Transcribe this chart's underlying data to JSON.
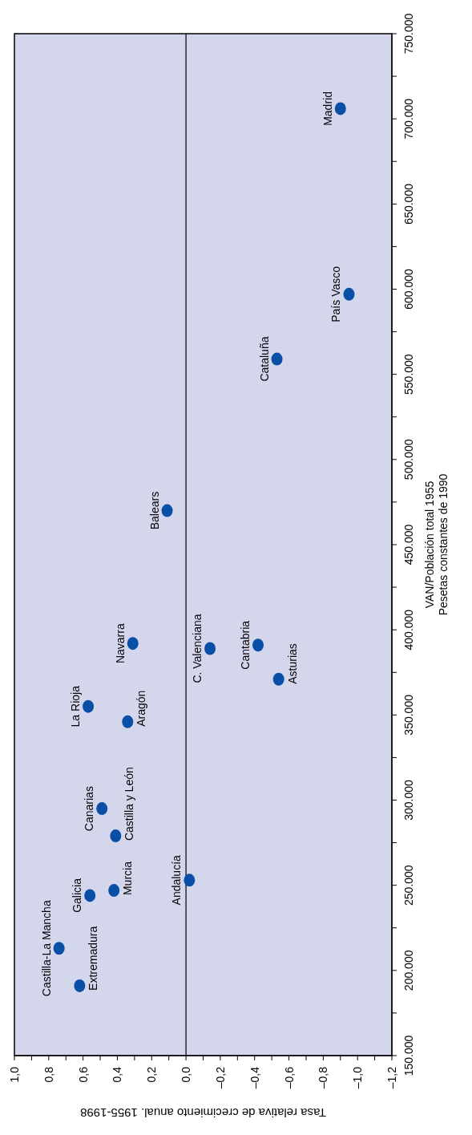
{
  "chart_data": {
    "type": "scatter",
    "xlabel": "Tasa relativa de crecimiento anual. 1955-1998",
    "ylabel": "VAN/Población total 1955\nPesetas constantes de 1990",
    "x": [
      -0.9,
      -0.95,
      -0.53,
      0.11,
      0.31,
      0.57,
      0.34,
      -0.14,
      -0.42,
      -0.54,
      0.49,
      0.41,
      0.56,
      0.42,
      -0.02,
      0.74,
      0.62
    ],
    "values": [
      706000,
      597000,
      559000,
      470000,
      392000,
      355000,
      346000,
      389000,
      391000,
      371000,
      295000,
      279000,
      244000,
      247000,
      253000,
      213000,
      191000
    ],
    "color": "#0a4fa6",
    "marker": "circle",
    "ylim": [
      150000,
      750000
    ],
    "yticks": [
      {
        "value": 150000,
        "label": "150.000"
      },
      {
        "value": 175000,
        "label": null
      },
      {
        "value": 200000,
        "label": "200.000"
      },
      {
        "value": 225000,
        "label": null
      },
      {
        "value": 250000,
        "label": "250.000"
      },
      {
        "value": 275000,
        "label": null
      },
      {
        "value": 300000,
        "label": "300.000"
      },
      {
        "value": 325000,
        "label": null
      },
      {
        "value": 350000,
        "label": "350.000"
      },
      {
        "value": 375000,
        "label": null
      },
      {
        "value": 400000,
        "label": "400.000"
      },
      {
        "value": 425000,
        "label": null
      },
      {
        "value": 450000,
        "label": "450.000"
      },
      {
        "value": 475000,
        "label": null
      },
      {
        "value": 500000,
        "label": "500.000"
      },
      {
        "value": 525000,
        "label": null
      },
      {
        "value": 550000,
        "label": "550.000"
      },
      {
        "value": 575000,
        "label": null
      },
      {
        "value": 600000,
        "label": "600.000"
      },
      {
        "value": 625000,
        "label": null
      },
      {
        "value": 650000,
        "label": "650.000"
      },
      {
        "value": 675000,
        "label": null
      },
      {
        "value": 700000,
        "label": "700.000"
      },
      {
        "value": 725000,
        "label": null
      },
      {
        "value": 750000,
        "label": "750.000"
      }
    ],
    "xlim": [
      1.0,
      -1.2
    ],
    "xticks": [
      {
        "value": 1.0,
        "label": "1,0"
      },
      {
        "value": 0.9,
        "label": null
      },
      {
        "value": 0.8,
        "label": "0,8"
      },
      {
        "value": 0.7,
        "label": null
      },
      {
        "value": 0.6,
        "label": "0,6"
      },
      {
        "value": 0.5,
        "label": null
      },
      {
        "value": 0.4,
        "label": "0,4"
      },
      {
        "value": 0.3,
        "label": null
      },
      {
        "value": 0.2,
        "label": "0,2"
      },
      {
        "value": 0.1,
        "label": null
      },
      {
        "value": 0,
        "label": "0,0"
      },
      {
        "value": -0.1,
        "label": null
      },
      {
        "value": -0.2,
        "label": "–0,2"
      },
      {
        "value": -0.3,
        "label": null
      },
      {
        "value": -0.4,
        "label": "–0,4"
      },
      {
        "value": -0.5,
        "label": null
      },
      {
        "value": -0.6,
        "label": "–0,6"
      },
      {
        "value": -0.7,
        "label": null
      },
      {
        "value": -0.8,
        "label": "–0,8"
      },
      {
        "value": -0.9,
        "label": null
      },
      {
        "value": -1.0,
        "label": "–1,0"
      },
      {
        "value": -1.1,
        "label": null
      },
      {
        "value": -1.2,
        "label": "–1,2"
      }
    ],
    "ref_lines": [
      {
        "axis": "x",
        "value": 0,
        "color": "#000000"
      }
    ],
    "annotations": [
      {
        "text": "Madrid",
        "x": -0.9,
        "y": 706000
      },
      {
        "text": "País Vasco",
        "x": -0.95,
        "y": 597000
      },
      {
        "text": "Cataluña",
        "x": -0.53,
        "y": 559000
      },
      {
        "text": "Balears",
        "x": 0.11,
        "y": 470000
      },
      {
        "text": "Navarra",
        "x": 0.31,
        "y": 392000
      },
      {
        "text": "La Rioja",
        "x": 0.57,
        "y": 355000
      },
      {
        "text": "Aragón",
        "x": 0.34,
        "y": 346000
      },
      {
        "text": "C. Valenciana",
        "x": -0.14,
        "y": 389000
      },
      {
        "text": "Cantabria",
        "x": -0.42,
        "y": 391000
      },
      {
        "text": "Asturias",
        "x": -0.54,
        "y": 371000
      },
      {
        "text": "Canarias",
        "x": 0.49,
        "y": 295000
      },
      {
        "text": "Castilla y León",
        "x": 0.41,
        "y": 279000
      },
      {
        "text": "Galicia",
        "x": 0.56,
        "y": 244000
      },
      {
        "text": "Murcia",
        "x": 0.42,
        "y": 247000
      },
      {
        "text": "Andalucía",
        "x": -0.02,
        "y": 253000
      },
      {
        "text": "Castilla-La Mancha",
        "x": 0.74,
        "y": 213000
      },
      {
        "text": "Extremadura",
        "x": 0.62,
        "y": 191000
      }
    ]
  }
}
